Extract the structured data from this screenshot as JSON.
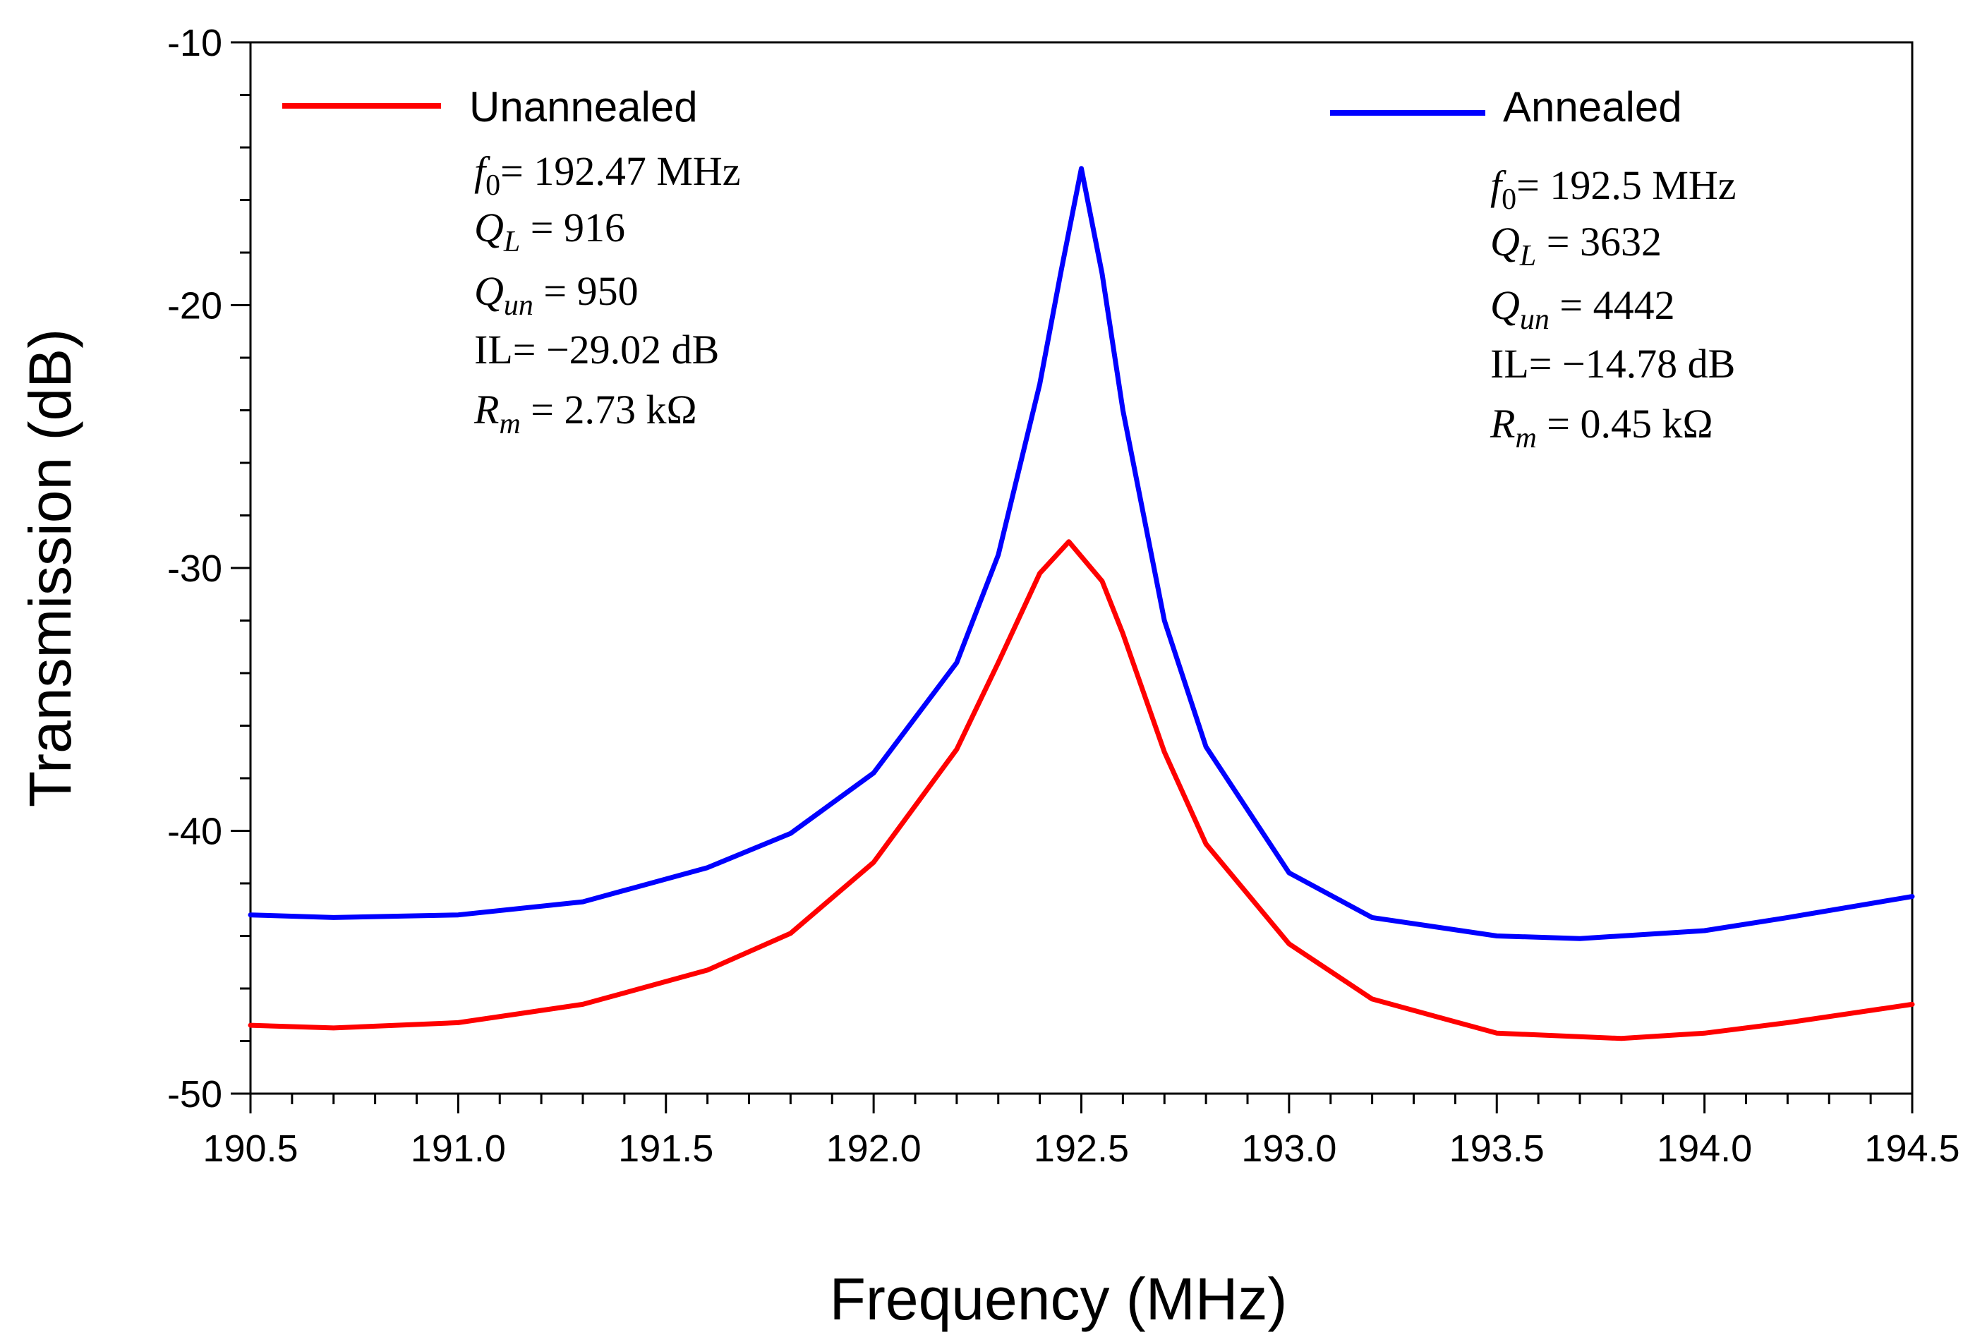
{
  "chart_data": {
    "type": "line",
    "title": "",
    "xlabel": "Frequency (MHz)",
    "ylabel": "Transmission (dB)",
    "xlim": [
      190.5,
      194.5
    ],
    "ylim": [
      -50,
      -10
    ],
    "x_ticks": [
      "190.5",
      "191.0",
      "191.5",
      "192.0",
      "192.5",
      "193.0",
      "193.5",
      "194.0",
      "194.5"
    ],
    "y_ticks": [
      "-10",
      "-20",
      "-30",
      "-40",
      "-50"
    ],
    "grid": false,
    "legend_position": "top",
    "series": [
      {
        "name": "Unannealed",
        "color": "#ff0000",
        "x": [
          190.5,
          190.7,
          191.0,
          191.3,
          191.6,
          191.8,
          192.0,
          192.2,
          192.3,
          192.4,
          192.47,
          192.55,
          192.6,
          192.7,
          192.8,
          193.0,
          193.2,
          193.5,
          193.8,
          194.0,
          194.2,
          194.5
        ],
        "y": [
          -47.4,
          -47.5,
          -47.3,
          -46.6,
          -45.3,
          -43.9,
          -41.2,
          -36.9,
          -33.6,
          -30.2,
          -29.0,
          -30.5,
          -32.5,
          -37.0,
          -40.5,
          -44.3,
          -46.4,
          -47.7,
          -47.9,
          -47.7,
          -47.3,
          -46.6
        ]
      },
      {
        "name": "Annealed",
        "color": "#0000ff",
        "x": [
          190.5,
          190.7,
          191.0,
          191.3,
          191.6,
          191.8,
          192.0,
          192.2,
          192.3,
          192.4,
          192.45,
          192.5,
          192.55,
          192.6,
          192.7,
          192.8,
          193.0,
          193.2,
          193.5,
          193.7,
          194.0,
          194.2,
          194.5
        ],
        "y": [
          -43.2,
          -43.3,
          -43.2,
          -42.7,
          -41.4,
          -40.1,
          -37.8,
          -33.6,
          -29.5,
          -23.0,
          -18.8,
          -14.8,
          -18.8,
          -24.0,
          -32.0,
          -36.8,
          -41.6,
          -43.3,
          -44.0,
          -44.1,
          -43.8,
          -43.3,
          -42.5
        ]
      }
    ],
    "annotations": [
      {
        "series": "Unannealed",
        "f0_symbol": "f",
        "f0_sub": "0",
        "f0_value": "= 192.47 MHz",
        "QL_symbol": "Q",
        "QL_sub": "L",
        "QL_value": " = 916",
        "Qun_symbol": "Q",
        "Qun_sub": "un",
        "Qun_value": " = 950",
        "IL": "IL= −29.02 dB",
        "Rm_symbol": "R",
        "Rm_sub": "m",
        "Rm_value": " = 2.73 kΩ"
      },
      {
        "series": "Annealed",
        "f0_symbol": "f",
        "f0_sub": "0",
        "f0_value": "= 192.5 MHz",
        "QL_symbol": "Q",
        "QL_sub": "L",
        "QL_value": " = 3632",
        "Qun_symbol": "Q",
        "Qun_sub": "un",
        "Qun_value": " = 4442",
        "IL": "IL= −14.78 dB",
        "Rm_symbol": "R",
        "Rm_sub": "m",
        "Rm_value": " = 0.45 kΩ"
      }
    ]
  }
}
